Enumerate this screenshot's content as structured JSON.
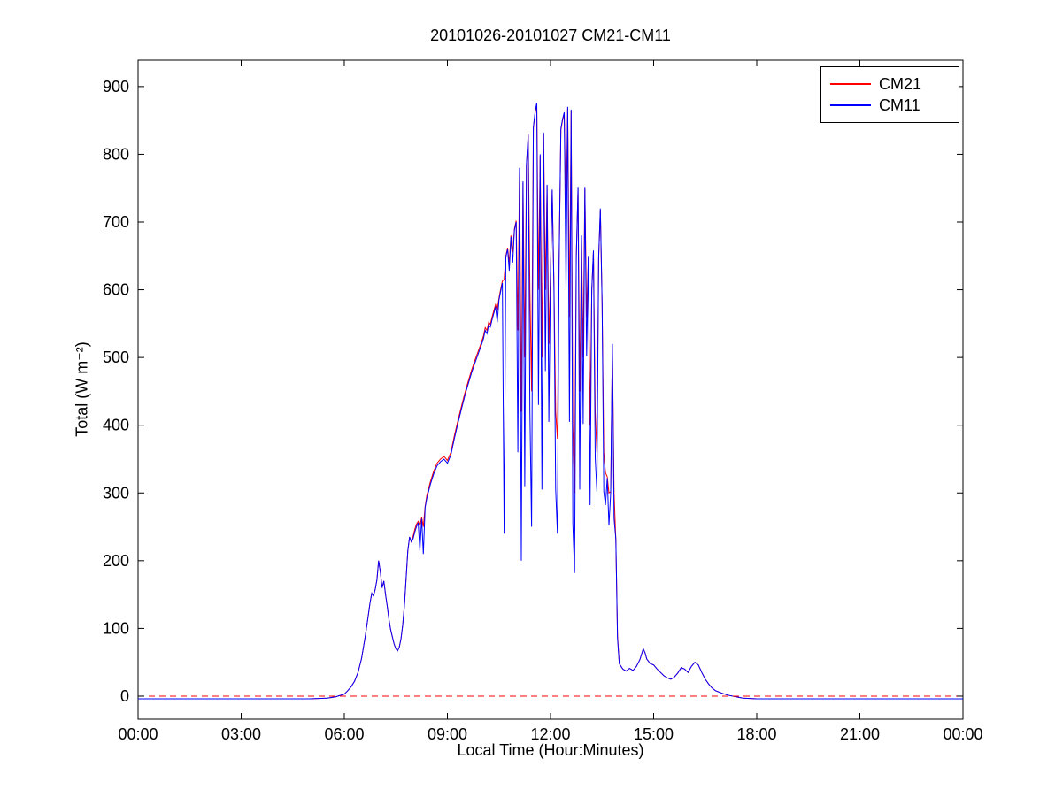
{
  "figure": {
    "title": "20101026-20101027 CM21-CM11"
  },
  "chart_data": {
    "type": "line",
    "title": "20101026-20101027 CM21-CM11",
    "xlabel": "Local Time (Hour:Minutes)",
    "ylabel": "Total (W m⁻²)",
    "xlim": [
      0,
      24
    ],
    "ylim": [
      -34,
      939
    ],
    "grid": false,
    "legend_position": "top-right",
    "xticks": {
      "values": [
        0,
        3,
        6,
        9,
        12,
        15,
        18,
        21,
        24
      ],
      "labels": [
        "00:00",
        "03:00",
        "06:00",
        "09:00",
        "12:00",
        "15:00",
        "18:00",
        "21:00",
        "00:00"
      ]
    },
    "yticks": {
      "values": [
        0,
        100,
        200,
        300,
        400,
        500,
        600,
        700,
        800,
        900
      ],
      "labels": [
        "0",
        "100",
        "200",
        "300",
        "400",
        "500",
        "600",
        "700",
        "800",
        "900"
      ]
    },
    "ref_line": {
      "y": 0,
      "color": "#ff0000",
      "dash": true
    },
    "x": [
      0,
      1,
      2,
      3,
      4,
      5,
      5.5,
      5.75,
      6.0,
      6.1,
      6.2,
      6.3,
      6.4,
      6.5,
      6.6,
      6.7,
      6.75,
      6.8,
      6.85,
      6.9,
      6.95,
      7.0,
      7.05,
      7.1,
      7.15,
      7.2,
      7.25,
      7.3,
      7.35,
      7.4,
      7.45,
      7.5,
      7.55,
      7.6,
      7.65,
      7.7,
      7.75,
      7.8,
      7.85,
      7.9,
      7.95,
      8.0,
      8.05,
      8.1,
      8.15,
      8.2,
      8.25,
      8.3,
      8.35,
      8.4,
      8.5,
      8.6,
      8.7,
      8.8,
      8.9,
      9.0,
      9.1,
      9.2,
      9.3,
      9.4,
      9.5,
      9.6,
      9.7,
      9.8,
      9.9,
      10.0,
      10.05,
      10.1,
      10.15,
      10.2,
      10.25,
      10.3,
      10.35,
      10.4,
      10.45,
      10.5,
      10.55,
      10.6,
      10.65,
      10.7,
      10.75,
      10.8,
      10.85,
      10.9,
      10.95,
      11.0,
      11.05,
      11.1,
      11.15,
      11.2,
      11.25,
      11.3,
      11.35,
      11.4,
      11.45,
      11.5,
      11.55,
      11.6,
      11.65,
      11.7,
      11.75,
      11.8,
      11.85,
      11.9,
      11.95,
      12.0,
      12.05,
      12.1,
      12.15,
      12.2,
      12.25,
      12.3,
      12.35,
      12.4,
      12.45,
      12.5,
      12.55,
      12.6,
      12.65,
      12.7,
      12.75,
      12.8,
      12.85,
      12.9,
      12.95,
      13.0,
      13.05,
      13.1,
      13.15,
      13.2,
      13.25,
      13.3,
      13.35,
      13.4,
      13.45,
      13.5,
      13.55,
      13.6,
      13.65,
      13.7,
      13.75,
      13.8,
      13.85,
      13.9,
      13.95,
      14.0,
      14.1,
      14.2,
      14.3,
      14.4,
      14.5,
      14.6,
      14.7,
      14.75,
      14.8,
      14.9,
      15.0,
      15.1,
      15.2,
      15.3,
      15.4,
      15.5,
      15.6,
      15.7,
      15.8,
      15.9,
      16.0,
      16.1,
      16.2,
      16.3,
      16.4,
      16.5,
      16.6,
      16.7,
      16.8,
      17.0,
      17.2,
      17.4,
      17.6,
      18.0,
      19.0,
      20.0,
      21.0,
      22.0,
      23.0,
      24.0
    ],
    "series": [
      {
        "name": "CM21",
        "color": "#ff0000",
        "values": [
          -4,
          -4,
          -4,
          -4,
          -4,
          -4,
          -3,
          -1,
          3,
          8,
          14,
          22,
          35,
          55,
          85,
          120,
          138,
          152,
          148,
          158,
          172,
          200,
          183,
          160,
          170,
          150,
          133,
          113,
          98,
          87,
          77,
          70,
          67,
          72,
          85,
          105,
          135,
          175,
          215,
          235,
          228,
          236,
          246,
          254,
          258,
          252,
          264,
          250,
          280,
          296,
          316,
          332,
          344,
          350,
          354,
          348,
          360,
          384,
          406,
          426,
          446,
          464,
          481,
          496,
          510,
          524,
          532,
          544,
          540,
          552,
          549,
          560,
          569,
          578,
          570,
          588,
          601,
          613,
          615,
          650,
          662,
          640,
          680,
          655,
          690,
          702,
          540,
          778,
          420,
          758,
          500,
          783,
          828,
          600,
          450,
          838,
          860,
          874,
          600,
          798,
          500,
          830,
          600,
          753,
          520,
          628,
          746,
          605,
          420,
          380,
          642,
          836,
          850,
          860,
          700,
          868,
          560,
          864,
          400,
          300,
          650,
          750,
          450,
          678,
          500,
          750,
          560,
          648,
          400,
          598,
          656,
          420,
          360,
          646,
          718,
          578,
          360,
          330,
          324,
          300,
          302,
          518,
          300,
          230,
          90,
          48,
          40,
          37,
          41,
          38,
          44,
          54,
          70,
          64,
          55,
          48,
          46,
          40,
          35,
          30,
          27,
          25,
          28,
          34,
          42,
          40,
          35,
          44,
          50,
          46,
          35,
          25,
          18,
          12,
          8,
          4,
          1,
          -1,
          -3,
          -4,
          -4,
          -4,
          -4,
          -4,
          -4,
          -4
        ]
      },
      {
        "name": "CM11",
        "color": "#0000ff",
        "values": [
          -4,
          -4,
          -4,
          -4,
          -4,
          -4,
          -3,
          -1,
          3,
          8,
          14,
          22,
          35,
          55,
          85,
          120,
          138,
          152,
          148,
          158,
          172,
          200,
          183,
          160,
          170,
          150,
          133,
          113,
          98,
          87,
          77,
          70,
          67,
          72,
          85,
          105,
          135,
          175,
          215,
          235,
          228,
          232,
          242,
          250,
          256,
          215,
          262,
          210,
          278,
          292,
          312,
          328,
          340,
          346,
          350,
          344,
          356,
          380,
          402,
          422,
          442,
          460,
          477,
          492,
          506,
          520,
          528,
          540,
          535,
          548,
          545,
          556,
          565,
          575,
          552,
          585,
          598,
          610,
          240,
          648,
          660,
          628,
          678,
          640,
          688,
          700,
          360,
          780,
          200,
          760,
          310,
          785,
          830,
          420,
          250,
          840,
          862,
          876,
          430,
          800,
          305,
          832,
          480,
          755,
          405,
          625,
          748,
          600,
          305,
          240,
          640,
          838,
          852,
          862,
          600,
          870,
          405,
          866,
          255,
          182,
          648,
          752,
          305,
          680,
          402,
          752,
          502,
          650,
          282,
          600,
          658,
          352,
          302,
          648,
          720,
          580,
          302,
          282,
          322,
          252,
          300,
          520,
          262,
          232,
          85,
          48,
          40,
          37,
          41,
          38,
          44,
          54,
          70,
          64,
          55,
          48,
          46,
          40,
          35,
          30,
          27,
          25,
          28,
          34,
          42,
          40,
          35,
          44,
          50,
          46,
          35,
          25,
          18,
          12,
          8,
          4,
          1,
          -1,
          -3,
          -4,
          -4,
          -4,
          -4,
          -4,
          -4,
          -4
        ]
      }
    ]
  }
}
